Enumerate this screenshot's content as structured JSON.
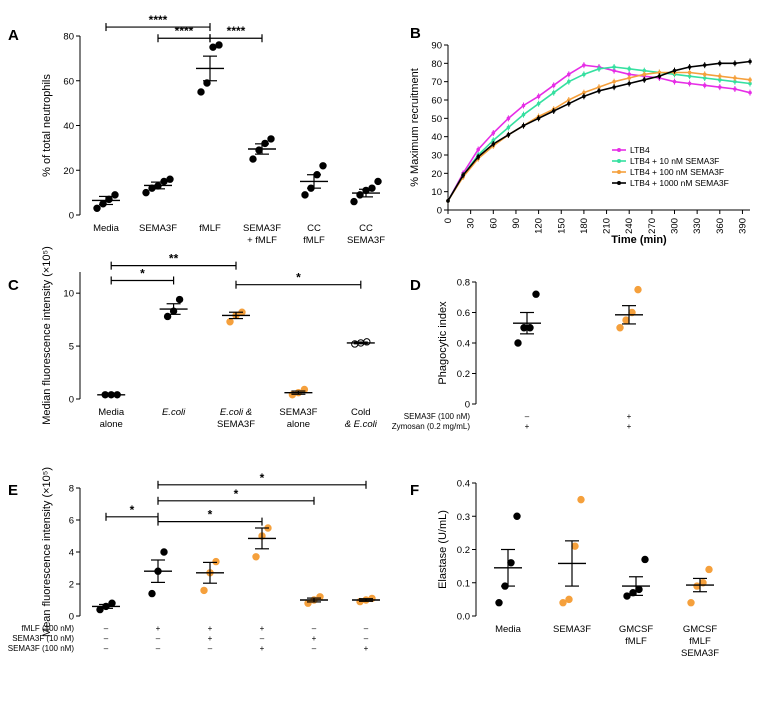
{
  "colors": {
    "black": "#000000",
    "orange": "#f5a03c",
    "magenta": "#e62ee6",
    "mint": "#35e0a0"
  },
  "panels": {
    "A": "A",
    "B": "B",
    "C": "C",
    "D": "D",
    "E": "E",
    "F": "F"
  },
  "chart_data": [
    {
      "panel": "A",
      "type": "scatter",
      "ylabel": "% of total neutrophils",
      "ylim": [
        0,
        80
      ],
      "yticks": [
        0,
        20,
        40,
        60,
        80
      ],
      "categories": [
        {
          "lines": [
            "Media"
          ],
          "points": [
            3,
            5,
            7,
            9
          ],
          "mean": 6.5,
          "sem": 1.8,
          "color": "black"
        },
        {
          "lines": [
            "SEMA3F"
          ],
          "points": [
            10,
            12,
            13,
            15,
            16
          ],
          "mean": 13.2,
          "sem": 1.5,
          "color": "black"
        },
        {
          "lines": [
            "fMLF"
          ],
          "points": [
            55,
            59,
            75,
            76
          ],
          "mean": 65.5,
          "sem": 5.5,
          "color": "black"
        },
        {
          "lines": [
            "SEMA3F",
            "+ fMLF"
          ],
          "points": [
            25,
            29,
            32,
            34
          ],
          "mean": 29.5,
          "sem": 2.3,
          "color": "black"
        },
        {
          "lines": [
            "CC",
            "fMLF"
          ],
          "points": [
            9,
            12,
            18,
            22
          ],
          "mean": 15,
          "sem": 3,
          "color": "black"
        },
        {
          "lines": [
            "CC",
            "SEMA3F"
          ],
          "points": [
            6,
            9,
            11,
            12,
            15
          ],
          "mean": 9.8,
          "sem": 1.7,
          "color": "black"
        }
      ],
      "annotations": [
        {
          "from": 0,
          "to": 2,
          "y": 84,
          "label": "****"
        },
        {
          "from": 1,
          "to": 2,
          "y": 79,
          "label": "****"
        },
        {
          "from": 2,
          "to": 3,
          "y": 79,
          "label": "****"
        }
      ]
    },
    {
      "panel": "B",
      "type": "line",
      "ylabel": "% Maximum recruitment",
      "xlabel": "Time (min)",
      "xlim": [
        0,
        400
      ],
      "ylim": [
        0,
        90
      ],
      "xticks": [
        0,
        30,
        60,
        90,
        120,
        150,
        180,
        210,
        240,
        270,
        300,
        330,
        360,
        390
      ],
      "yticks": [
        0,
        10,
        20,
        30,
        40,
        50,
        60,
        70,
        80,
        90
      ],
      "legend": "center-right",
      "series": [
        {
          "name": "LTB4",
          "color": "magenta",
          "x": [
            0,
            20,
            40,
            60,
            80,
            100,
            120,
            140,
            160,
            180,
            200,
            220,
            240,
            260,
            280,
            300,
            320,
            340,
            360,
            380,
            400
          ],
          "y": [
            5,
            20,
            33,
            42,
            50,
            57,
            62,
            68,
            74,
            79,
            78,
            76,
            74,
            73,
            72,
            70,
            69,
            68,
            67,
            66,
            64
          ]
        },
        {
          "name": "LTB4 + 10 nM SEMA3F",
          "color": "mint",
          "x": [
            0,
            20,
            40,
            60,
            80,
            100,
            120,
            140,
            160,
            180,
            200,
            220,
            240,
            260,
            280,
            300,
            320,
            340,
            360,
            380,
            400
          ],
          "y": [
            5,
            19,
            30,
            38,
            45,
            52,
            58,
            64,
            70,
            74,
            77,
            78,
            77,
            76,
            75,
            74,
            73,
            72,
            71,
            70,
            69
          ]
        },
        {
          "name": "LTB4 + 100 nM SEMA3F",
          "color": "orange",
          "x": [
            0,
            20,
            40,
            60,
            80,
            100,
            120,
            140,
            160,
            180,
            200,
            220,
            240,
            260,
            280,
            300,
            320,
            340,
            360,
            380,
            400
          ],
          "y": [
            5,
            18,
            28,
            35,
            41,
            46,
            51,
            55,
            60,
            64,
            67,
            70,
            72,
            74,
            75,
            75,
            75,
            74,
            73,
            72,
            71
          ]
        },
        {
          "name": "LTB4 + 1000 nM SEMA3F",
          "color": "black",
          "x": [
            0,
            20,
            40,
            60,
            80,
            100,
            120,
            140,
            160,
            180,
            200,
            220,
            240,
            260,
            280,
            300,
            320,
            340,
            360,
            380,
            400
          ],
          "y": [
            5,
            19,
            29,
            36,
            41,
            46,
            50,
            54,
            58,
            62,
            65,
            67,
            69,
            71,
            73,
            76,
            78,
            79,
            80,
            80,
            81
          ]
        }
      ]
    },
    {
      "panel": "C",
      "type": "scatter",
      "ylabel": "Median fluorescence intensity (×10⁵)",
      "ylim": [
        0,
        12
      ],
      "yticks": [
        0,
        5,
        10
      ],
      "categories": [
        {
          "lines": [
            "Media",
            "alone"
          ],
          "points": [
            0.4,
            0.4,
            0.4
          ],
          "mean": 0.4,
          "sem": 0.05,
          "color": "black"
        },
        {
          "lines": [
            "E.coli"
          ],
          "italic": [
            true
          ],
          "points": [
            7.8,
            8.3,
            9.4
          ],
          "mean": 8.5,
          "sem": 0.5,
          "color": "black"
        },
        {
          "lines": [
            "E.coli &",
            "SEMA3F"
          ],
          "italic": [
            true,
            false
          ],
          "points": [
            7.3,
            7.9,
            8.2
          ],
          "mean": 7.9,
          "sem": 0.3,
          "color": "orange"
        },
        {
          "lines": [
            "SEMA3F",
            "alone"
          ],
          "points": [
            0.4,
            0.6,
            0.9
          ],
          "mean": 0.6,
          "sem": 0.15,
          "color": "orange"
        },
        {
          "lines": [
            "Cold",
            "& E.coli"
          ],
          "italic": [
            false,
            true
          ],
          "points": [
            5.2,
            5.3,
            5.4
          ],
          "mean": 5.3,
          "sem": 0.08,
          "color": "white"
        }
      ],
      "annotations": [
        {
          "from": 0,
          "to": 2,
          "y": 12.6,
          "label": "**"
        },
        {
          "from": 0,
          "to": 1,
          "y": 11.2,
          "label": "*"
        },
        {
          "from": 2,
          "to": 4,
          "y": 10.8,
          "label": "*"
        }
      ]
    },
    {
      "panel": "D",
      "type": "scatter",
      "ylabel": "Phagocytic index",
      "ylim": [
        0,
        0.8
      ],
      "yticks": [
        0,
        0.2,
        0.4,
        0.6,
        0.8
      ],
      "ytick_labels": [
        "0",
        "0.2",
        "0.4",
        "0.6",
        "0.8"
      ],
      "categories": [
        {
          "points": [
            0.4,
            0.5,
            0.5,
            0.72
          ],
          "mean": 0.53,
          "sem": 0.07,
          "color": "black"
        },
        {
          "points": [
            0.5,
            0.55,
            0.6,
            0.75
          ],
          "mean": 0.585,
          "sem": 0.06,
          "color": "orange"
        }
      ],
      "conditions": [
        {
          "label": "SEMA3F (100 nM)",
          "values": [
            "–",
            "+"
          ]
        },
        {
          "label": "Zymosan (0.2 mg/mL)",
          "values": [
            "+",
            "+"
          ]
        }
      ]
    },
    {
      "panel": "E",
      "type": "scatter",
      "ylabel": "Mean fluorescence intensity (×10⁵)",
      "ylim": [
        0,
        8
      ],
      "yticks": [
        0,
        2,
        4,
        6,
        8
      ],
      "categories": [
        {
          "points": [
            0.4,
            0.6,
            0.8
          ],
          "mean": 0.6,
          "sem": 0.12,
          "color": "black"
        },
        {
          "points": [
            1.4,
            2.8,
            4.0
          ],
          "mean": 2.8,
          "sem": 0.7,
          "color": "black"
        },
        {
          "points": [
            1.6,
            2.7,
            3.4
          ],
          "mean": 2.7,
          "sem": 0.65,
          "color": "orange"
        },
        {
          "points": [
            3.7,
            5.0,
            5.5
          ],
          "mean": 4.85,
          "sem": 0.65,
          "color": "orange"
        },
        {
          "points": [
            0.8,
            1.0,
            1.2
          ],
          "mean": 1.0,
          "sem": 0.12,
          "color": "orange"
        },
        {
          "points": [
            0.9,
            1.0,
            1.1
          ],
          "mean": 1.0,
          "sem": 0.08,
          "color": "orange"
        }
      ],
      "annotations": [
        {
          "from": 0,
          "to": 1,
          "y": 6.2,
          "label": "*"
        },
        {
          "from": 1,
          "to": 3,
          "y": 5.9,
          "label": "*"
        },
        {
          "from": 1,
          "to": 4,
          "y": 7.2,
          "label": "*"
        },
        {
          "from": 1,
          "to": 5,
          "y": 8.2,
          "label": "*"
        }
      ],
      "conditions": [
        {
          "label": "fMLF (100 nM)",
          "values": [
            "–",
            "+",
            "+",
            "+",
            "–",
            "–"
          ]
        },
        {
          "label": "SEMA3F (10 nM)",
          "values": [
            "–",
            "–",
            "+",
            "–",
            "+",
            "–"
          ]
        },
        {
          "label": "SEMA3F (100 nM)",
          "values": [
            "–",
            "–",
            "–",
            "+",
            "–",
            "+"
          ]
        }
      ]
    },
    {
      "panel": "F",
      "type": "scatter",
      "ylabel": "Elastase (U/mL)",
      "ylim": [
        0,
        0.4
      ],
      "yticks": [
        0,
        0.1,
        0.2,
        0.3,
        0.4
      ],
      "ytick_labels": [
        "0.0",
        "0.1",
        "0.2",
        "0.3",
        "0.4"
      ],
      "categories": [
        {
          "lines": [
            "Media"
          ],
          "points": [
            0.04,
            0.09,
            0.16,
            0.3
          ],
          "mean": 0.145,
          "sem": 0.055,
          "color": "black"
        },
        {
          "lines": [
            "SEMA3F"
          ],
          "points": [
            0.04,
            0.05,
            0.21,
            0.35
          ],
          "mean": 0.158,
          "sem": 0.068,
          "color": "orange"
        },
        {
          "lines": [
            "GMCSF",
            "fMLF"
          ],
          "points": [
            0.06,
            0.07,
            0.08,
            0.17
          ],
          "mean": 0.09,
          "sem": 0.028,
          "color": "black"
        },
        {
          "lines": [
            "GMCSF",
            "fMLF",
            "SEMA3F"
          ],
          "points": [
            0.04,
            0.09,
            0.1,
            0.14
          ],
          "mean": 0.093,
          "sem": 0.02,
          "color": "orange"
        }
      ]
    }
  ]
}
